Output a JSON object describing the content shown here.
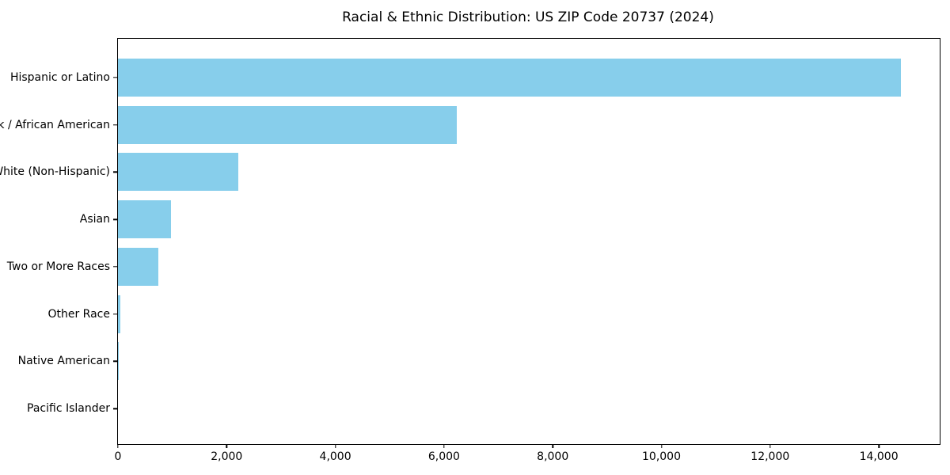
{
  "chart_data": {
    "type": "bar",
    "orientation": "horizontal",
    "title": "Racial & Ethnic Distribution: US ZIP Code 20737 (2024)",
    "categories": [
      "Hispanic or Latino",
      "Black / African American",
      "White (Non-Hispanic)",
      "Asian",
      "Two or More Races",
      "Other Race",
      "Native American",
      "Pacific Islander"
    ],
    "values": [
      14400,
      6230,
      2210,
      975,
      740,
      45,
      20,
      0
    ],
    "xlabel": "",
    "ylabel": "",
    "xlim": [
      0,
      15120
    ],
    "x_ticks": [
      0,
      2000,
      4000,
      6000,
      8000,
      10000,
      12000,
      14000
    ],
    "x_tick_labels": [
      "0",
      "2,000",
      "4,000",
      "6,000",
      "8,000",
      "10,000",
      "12,000",
      "14,000"
    ],
    "bar_color": "#87CEEB",
    "frame_color": "#000000",
    "background_color": "#ffffff",
    "grid": false,
    "legend": null
  }
}
